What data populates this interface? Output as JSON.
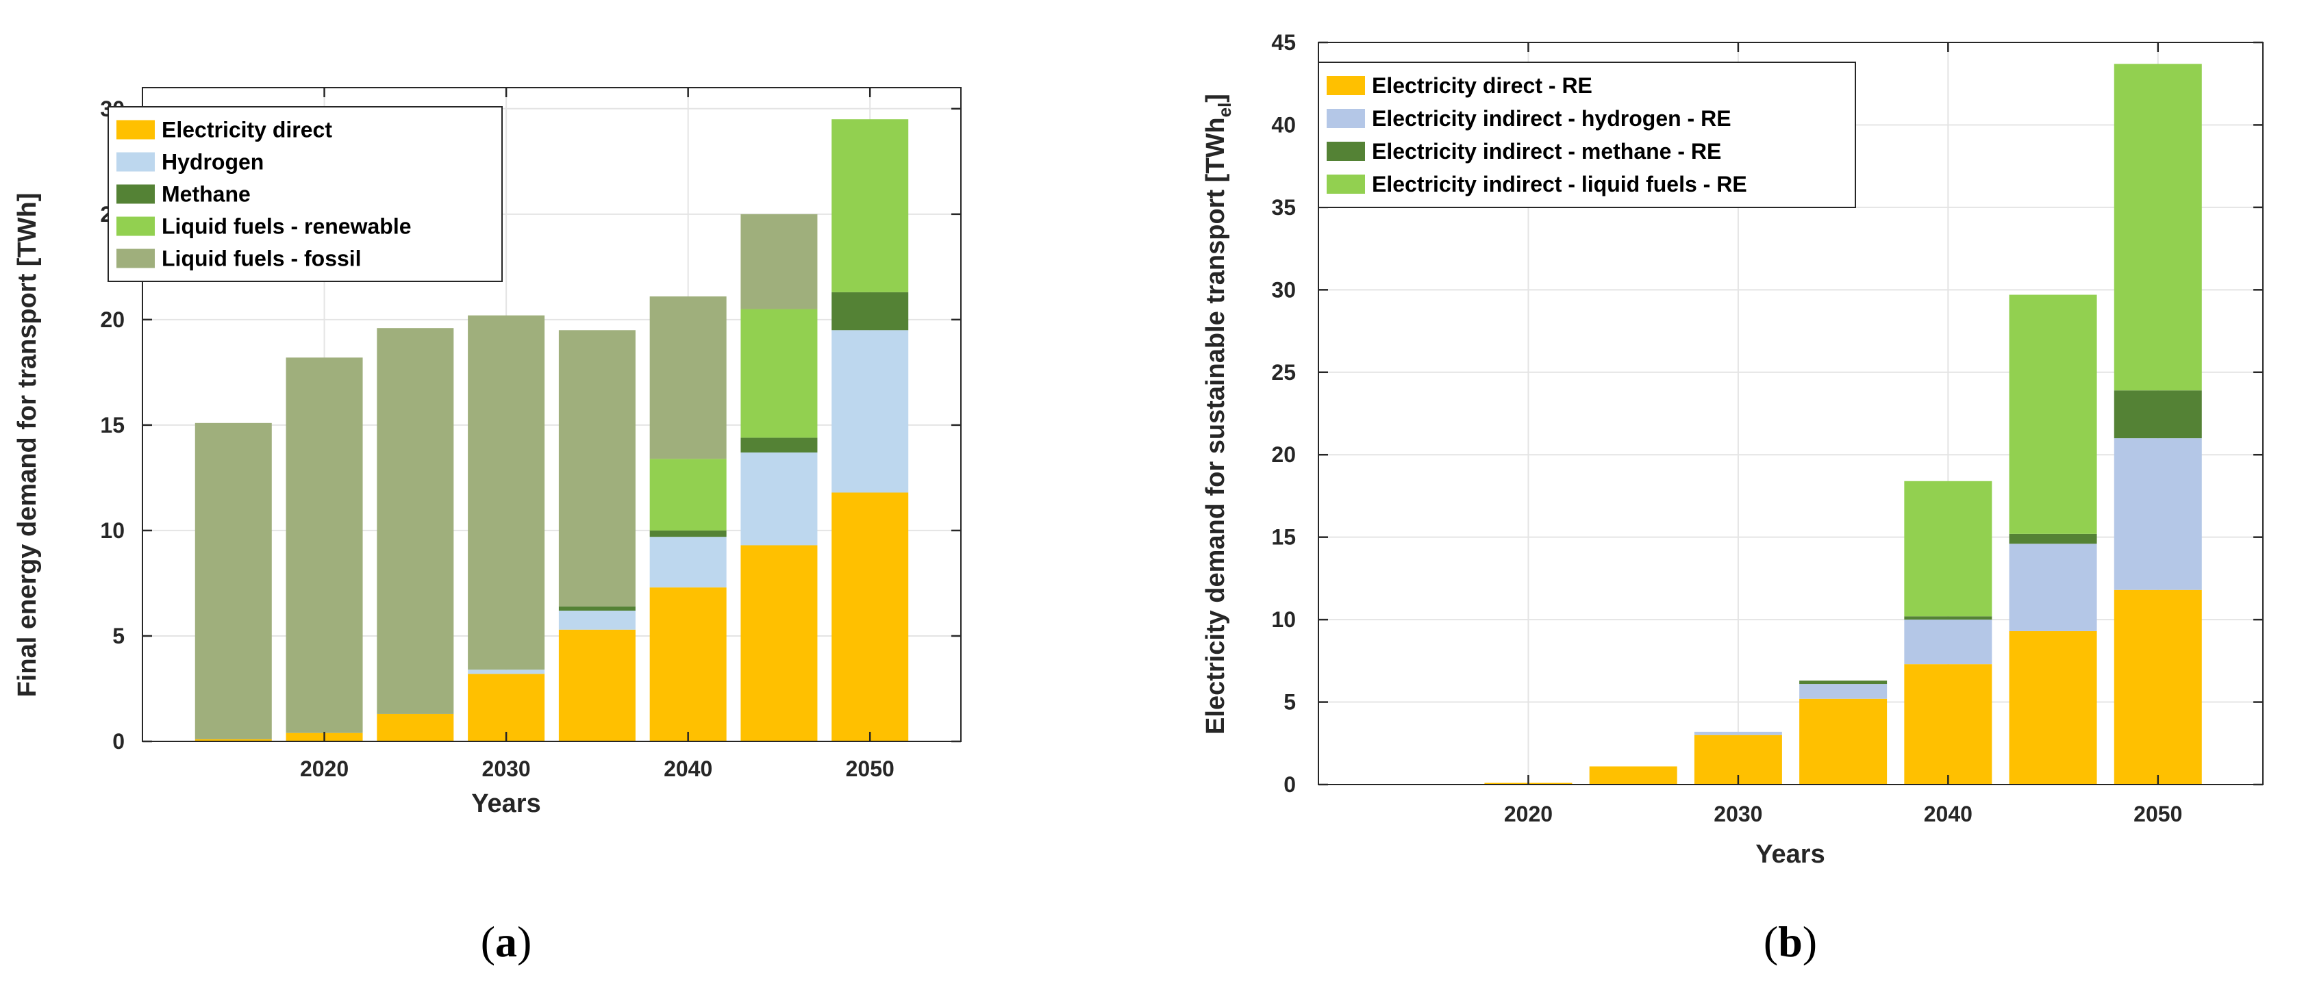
{
  "chart_data": [
    {
      "type": "bar",
      "stacked": true,
      "panel_label": "a",
      "x": [
        2015,
        2020,
        2025,
        2030,
        2035,
        2040,
        2045,
        2050
      ],
      "xticks": [
        "2020",
        "2030",
        "2040",
        "2050"
      ],
      "xtick_values": [
        2020,
        2030,
        2040,
        2050
      ],
      "xlim": [
        2010,
        2055
      ],
      "ylim": [
        0,
        31
      ],
      "yticks": [
        0,
        5,
        10,
        15,
        20,
        25,
        30
      ],
      "xlabel": "Years",
      "ylabel": "Final energy demand for transport [TWh]",
      "grid": true,
      "legend_position": "top-left",
      "series": [
        {
          "name": "Electricity direct",
          "color": "#ffc000",
          "values": [
            0.1,
            0.4,
            1.3,
            3.2,
            5.3,
            7.3,
            9.3,
            11.8
          ]
        },
        {
          "name": "Hydrogen",
          "color": "#bdd7ee",
          "values": [
            0,
            0,
            0,
            0.2,
            0.9,
            2.4,
            4.4,
            7.7
          ]
        },
        {
          "name": "Methane",
          "color": "#548235",
          "values": [
            0,
            0,
            0,
            0,
            0.2,
            0.3,
            0.7,
            1.8
          ]
        },
        {
          "name": "Liquid fuels - renewable",
          "color": "#92d050",
          "values": [
            0,
            0,
            0,
            0,
            0,
            3.4,
            6.1,
            8.2
          ]
        },
        {
          "name": "Liquid fuels - fossil",
          "color": "#9faf7c",
          "values": [
            15.0,
            17.8,
            18.3,
            16.8,
            13.1,
            7.7,
            4.5,
            0
          ]
        }
      ]
    },
    {
      "type": "bar",
      "stacked": true,
      "panel_label": "b",
      "x": [
        2015,
        2020,
        2025,
        2030,
        2035,
        2040,
        2045,
        2050
      ],
      "xticks": [
        "2020",
        "2030",
        "2040",
        "2050"
      ],
      "xtick_values": [
        2020,
        2030,
        2040,
        2050
      ],
      "xlim": [
        2010,
        2055
      ],
      "ylim": [
        0,
        45
      ],
      "yticks": [
        0,
        5,
        10,
        15,
        20,
        25,
        30,
        35,
        40,
        45
      ],
      "xlabel": "Years",
      "ylabel": "Electricity demand for sustainable transport [TWh",
      "ylabel_subscript": "el",
      "ylabel_suffix": "]",
      "grid": true,
      "legend_position": "top-left",
      "series": [
        {
          "name": "Electricity direct - RE",
          "color": "#ffc000",
          "values": [
            0,
            0.1,
            1.1,
            3.0,
            5.2,
            7.3,
            9.3,
            11.8
          ]
        },
        {
          "name": "Electricity indirect - hydrogen - RE",
          "color": "#b4c7e7",
          "values": [
            0,
            0,
            0,
            0.2,
            0.9,
            2.7,
            5.3,
            9.2
          ]
        },
        {
          "name": "Electricity indirect - methane - RE",
          "color": "#548235",
          "values": [
            0,
            0,
            0,
            0,
            0.2,
            0.2,
            0.6,
            2.9
          ]
        },
        {
          "name": "Electricity indirect - liquid fuels - RE",
          "color": "#92d050",
          "values": [
            0,
            0,
            0,
            0,
            0,
            8.2,
            14.5,
            19.8
          ]
        }
      ]
    }
  ]
}
